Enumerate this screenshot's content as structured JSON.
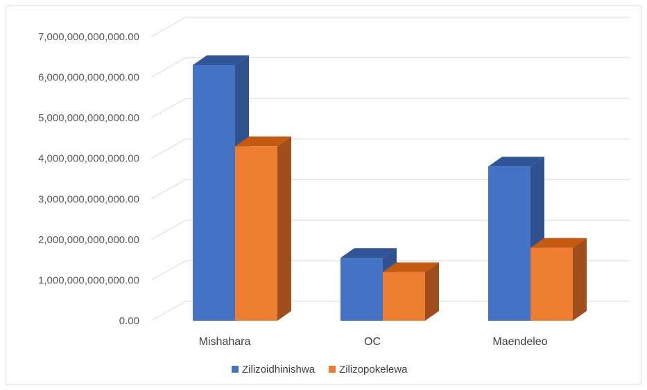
{
  "chart_data": {
    "type": "bar",
    "style": "3d-clustered-column",
    "title": "",
    "xlabel": "",
    "ylabel": "",
    "categories": [
      "Mishahara",
      "OC",
      "Maendeleo"
    ],
    "series": [
      {
        "name": "Zilizoidhinishwa",
        "color": "#4472C4",
        "side_color": "#2F528F",
        "top_color": "#2F5597",
        "values": [
          6300000000000,
          1550000000000,
          3800000000000
        ]
      },
      {
        "name": "Zilizopokelewa",
        "color": "#ED7D31",
        "side_color": "#A04E1C",
        "top_color": "#C55A11",
        "values": [
          4300000000000,
          1200000000000,
          1800000000000
        ]
      }
    ],
    "ylim": [
      0,
      7000000000000
    ],
    "yticks": [
      0,
      1000000000000,
      2000000000000,
      3000000000000,
      4000000000000,
      5000000000000,
      6000000000000,
      7000000000000
    ],
    "ytick_labels": [
      "0.00",
      "1,000,000,000,000.00",
      "2,000,000,000,000.00",
      "3,000,000,000,000.00",
      "4,000,000,000,000.00",
      "5,000,000,000,000.00",
      "6,000,000,000,000.00",
      "7,000,000,000,000.00"
    ],
    "grid": true,
    "legend": "bottom"
  }
}
